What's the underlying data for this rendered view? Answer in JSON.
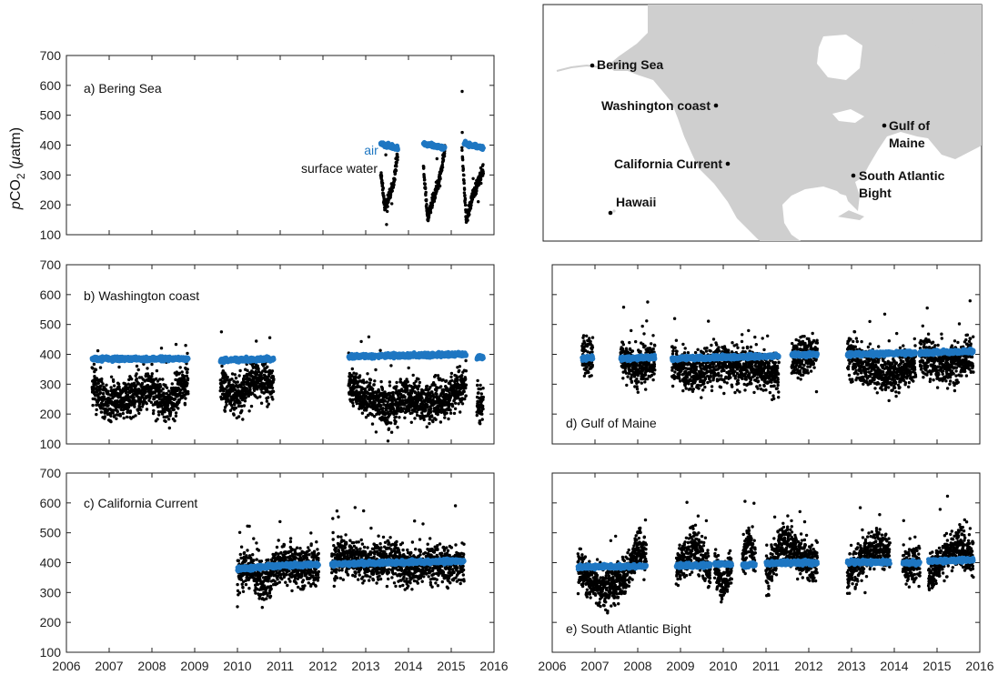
{
  "colors": {
    "air": "#1f77c2",
    "water": "#000000",
    "land": "#cfcfcf",
    "frame": "#222222"
  },
  "ylabel_parts": {
    "italic": "p",
    "main": "CO",
    "sub": "2",
    "unit_open": " (",
    "mu": "μ",
    "unit_rest": "atm)"
  },
  "x_ticks": [
    "2006",
    "2007",
    "2008",
    "2009",
    "2010",
    "2011",
    "2012",
    "2013",
    "2014",
    "2015",
    "2016"
  ],
  "y_ticks": [
    "100",
    "200",
    "300",
    "400",
    "500",
    "600",
    "700"
  ],
  "map": {
    "labels": [
      {
        "id": "bering",
        "text": "Bering Sea"
      },
      {
        "id": "washington",
        "text": "Washington coast"
      },
      {
        "id": "california",
        "text": "California Current"
      },
      {
        "id": "hawaii",
        "text": "Hawaii"
      },
      {
        "id": "gulf1",
        "text": "Gulf of"
      },
      {
        "id": "gulf2",
        "text": "Maine"
      },
      {
        "id": "sab1",
        "text": "South Atlantic"
      },
      {
        "id": "sab2",
        "text": "Bight"
      }
    ]
  },
  "chart_data": [
    {
      "id": "a",
      "type": "scatter",
      "title": "a) Bering Sea",
      "xlim": [
        2006,
        2016
      ],
      "ylim": [
        100,
        700
      ],
      "annotations": [
        "air",
        "surface water"
      ],
      "series": [
        {
          "name": "air",
          "segments": [
            {
              "x": [
                2013.35,
                2013.75
              ],
              "y": [
                405,
                390
              ]
            },
            {
              "x": [
                2014.35,
                2014.85
              ],
              "y": [
                405,
                390
              ]
            },
            {
              "x": [
                2015.3,
                2015.75
              ],
              "y": [
                405,
                390
              ]
            }
          ]
        },
        {
          "name": "surface water",
          "segments": [
            {
              "x": [
                2013.35,
                2013.45,
                2013.55,
                2013.65,
                2013.75
              ],
              "y": [
                310,
                190,
                230,
                270,
                375
              ]
            },
            {
              "x": [
                2014.35,
                2014.45,
                2014.55,
                2014.7,
                2014.85
              ],
              "y": [
                325,
                150,
                210,
                270,
                380
              ]
            },
            {
              "x": [
                2015.25,
                2015.35,
                2015.5,
                2015.75
              ],
              "y": [
                395,
                145,
                230,
                320
              ]
            }
          ]
        }
      ]
    },
    {
      "id": "b",
      "type": "scatter",
      "title": "b) Washington coast",
      "xlim": [
        2006,
        2016
      ],
      "ylim": [
        100,
        700
      ],
      "series": [
        {
          "name": "air",
          "segments": [
            {
              "x": [
                2006.6,
                2008.85
              ],
              "y": [
                385,
                385
              ]
            },
            {
              "x": [
                2009.6,
                2010.85
              ],
              "y": [
                380,
                385
              ]
            },
            {
              "x": [
                2012.6,
                2015.35
              ],
              "y": [
                393,
                400
              ]
            },
            {
              "x": [
                2015.6,
                2015.75
              ],
              "y": [
                390,
                390
              ]
            }
          ]
        },
        {
          "name": "surface water",
          "segments": [
            {
              "x": [
                2006.6,
                2007.0,
                2007.5,
                2008.0,
                2008.4,
                2008.85
              ],
              "y": [
                300,
                230,
                260,
                280,
                230,
                320
              ]
            },
            {
              "x": [
                2009.6,
                2010.0,
                2010.4,
                2010.85
              ],
              "y": [
                300,
                250,
                320,
                310
              ]
            },
            {
              "x": [
                2012.6,
                2013.0,
                2013.5,
                2014.0,
                2014.5,
                2015.0,
                2015.35
              ],
              "y": [
                300,
                260,
                220,
                260,
                230,
                270,
                300
              ]
            },
            {
              "x": [
                2015.6,
                2015.75
              ],
              "y": [
                240,
                230
              ]
            }
          ]
        }
      ]
    },
    {
      "id": "c",
      "type": "scatter",
      "title": "c) California Current",
      "xlim": [
        2006,
        2016
      ],
      "ylim": [
        100,
        700
      ],
      "series": [
        {
          "name": "air",
          "segments": [
            {
              "x": [
                2010.0,
                2010.5,
                2011.0,
                2011.9
              ],
              "y": [
                378,
                385,
                390,
                395
              ]
            },
            {
              "x": [
                2012.2,
                2013.0,
                2014.0,
                2015.3
              ],
              "y": [
                395,
                398,
                402,
                405
              ]
            }
          ]
        },
        {
          "name": "surface water",
          "segments": [
            {
              "x": [
                2010.0,
                2010.3,
                2010.6,
                2011.0,
                2011.5,
                2011.9
              ],
              "y": [
                360,
                390,
                330,
                400,
                380,
                390
              ]
            },
            {
              "x": [
                2012.2,
                2012.5,
                2013.0,
                2013.5,
                2014.0,
                2014.5,
                2015.0,
                2015.3
              ],
              "y": [
                400,
                420,
                390,
                420,
                380,
                400,
                390,
                395
              ]
            }
          ]
        }
      ]
    },
    {
      "id": "d",
      "type": "scatter",
      "title": "d) Gulf of Maine",
      "xlim": [
        2006,
        2016
      ],
      "ylim": [
        100,
        700
      ],
      "series": [
        {
          "name": "air",
          "segments": [
            {
              "x": [
                2006.7,
                2006.95
              ],
              "y": [
                385,
                390
              ]
            },
            {
              "x": [
                2007.6,
                2008.4
              ],
              "y": [
                385,
                390
              ]
            },
            {
              "x": [
                2008.8,
                2011.3
              ],
              "y": [
                385,
                395
              ]
            },
            {
              "x": [
                2011.6,
                2012.2
              ],
              "y": [
                398,
                400
              ]
            },
            {
              "x": [
                2012.9,
                2014.5
              ],
              "y": [
                400,
                405
              ]
            },
            {
              "x": [
                2014.6,
                2015.85
              ],
              "y": [
                405,
                410
              ]
            }
          ]
        },
        {
          "name": "surface water",
          "segments": [
            {
              "x": [
                2006.7,
                2006.95
              ],
              "y": [
                390,
                400
              ]
            },
            {
              "x": [
                2007.6,
                2008.0,
                2008.4
              ],
              "y": [
                400,
                350,
                380
              ]
            },
            {
              "x": [
                2008.8,
                2009.3,
                2009.8,
                2010.3,
                2010.8,
                2011.3
              ],
              "y": [
                380,
                330,
                370,
                360,
                350,
                330
              ]
            },
            {
              "x": [
                2011.6,
                2012.2
              ],
              "y": [
                380,
                400
              ]
            },
            {
              "x": [
                2012.9,
                2013.5,
                2014.0,
                2014.5
              ],
              "y": [
                400,
                350,
                330,
                370
              ]
            },
            {
              "x": [
                2014.6,
                2015.2,
                2015.85
              ],
              "y": [
                390,
                360,
                390
              ]
            }
          ]
        }
      ]
    },
    {
      "id": "e",
      "type": "scatter",
      "title": "e) South Atlantic Bight",
      "xlim": [
        2006,
        2016
      ],
      "ylim": [
        100,
        700
      ],
      "series": [
        {
          "name": "air",
          "segments": [
            {
              "x": [
                2006.6,
                2008.2
              ],
              "y": [
                385,
                388
              ]
            },
            {
              "x": [
                2008.9,
                2009.7
              ],
              "y": [
                390,
                392
              ]
            },
            {
              "x": [
                2009.8,
                2010.2
              ],
              "y": [
                395,
                395
              ]
            },
            {
              "x": [
                2010.45,
                2010.75
              ],
              "y": [
                392,
                392
              ]
            },
            {
              "x": [
                2011.0,
                2012.2
              ],
              "y": [
                398,
                400
              ]
            },
            {
              "x": [
                2012.9,
                2013.9
              ],
              "y": [
                402,
                402
              ]
            },
            {
              "x": [
                2014.2,
                2014.6
              ],
              "y": [
                400,
                400
              ]
            },
            {
              "x": [
                2014.8,
                2015.85
              ],
              "y": [
                405,
                410
              ]
            }
          ]
        },
        {
          "name": "surface water",
          "segments": [
            {
              "x": [
                2006.6,
                2007.2,
                2007.7,
                2008.0,
                2008.2
              ],
              "y": [
                380,
                300,
                350,
                450,
                420
              ]
            },
            {
              "x": [
                2008.9,
                2009.3,
                2009.7
              ],
              "y": [
                380,
                450,
                380
              ]
            },
            {
              "x": [
                2009.8,
                2010.0,
                2010.2
              ],
              "y": [
                380,
                330,
                380
              ]
            },
            {
              "x": [
                2010.45,
                2010.6,
                2010.75
              ],
              "y": [
                400,
                480,
                420
              ]
            },
            {
              "x": [
                2011.0,
                2011.4,
                2011.8,
                2012.2
              ],
              "y": [
                340,
                480,
                420,
                400
              ]
            },
            {
              "x": [
                2012.9,
                2013.3,
                2013.6,
                2013.9
              ],
              "y": [
                360,
                420,
                460,
                430
              ]
            },
            {
              "x": [
                2014.2,
                2014.6
              ],
              "y": [
                390,
                400
              ]
            },
            {
              "x": [
                2014.8,
                2015.2,
                2015.5,
                2015.85
              ],
              "y": [
                340,
                430,
                460,
                420
              ]
            }
          ]
        }
      ]
    }
  ]
}
